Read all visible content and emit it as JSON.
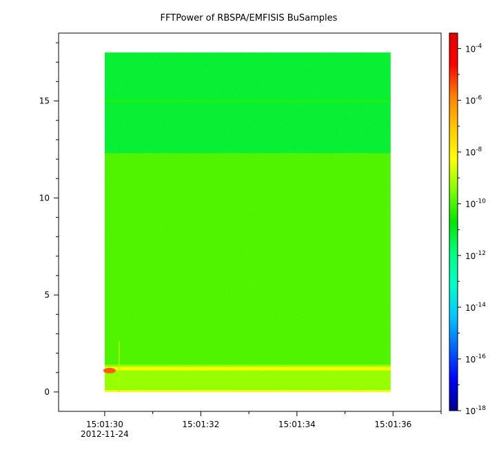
{
  "chart_data": {
    "type": "heatmap",
    "title": "FFTPower of RBSPA/EMFISIS  BuSamples",
    "xlabel": "",
    "ylabel": "",
    "x_ticks": [
      {
        "label": "15:01:30",
        "sub": "2012-11-24",
        "t": 30
      },
      {
        "label": "15:01:32",
        "sub": "",
        "t": 32
      },
      {
        "label": "15:01:34",
        "sub": "",
        "t": 34
      },
      {
        "label": "15:01:36",
        "sub": "",
        "t": 36
      }
    ],
    "xlim": [
      29.04,
      37.0
    ],
    "data_x_range": [
      30.0,
      35.95
    ],
    "y_ticks": [
      0,
      5,
      10,
      15
    ],
    "ylim": [
      -1.0,
      18.5
    ],
    "data_y_range": [
      0.0,
      17.5
    ],
    "colorbar": {
      "scale": "log",
      "range_exp": [
        -18,
        -3.4
      ],
      "ticks": [
        {
          "base": "10",
          "exp": "-4"
        },
        {
          "base": "10",
          "exp": "-6"
        },
        {
          "base": "10",
          "exp": "-8"
        },
        {
          "base": "10",
          "exp": "-10"
        },
        {
          "base": "10",
          "exp": "-12"
        },
        {
          "base": "10",
          "exp": "-14"
        },
        {
          "base": "10",
          "exp": "-16"
        },
        {
          "base": "10",
          "exp": "-18"
        }
      ],
      "colormap": [
        "#00008c",
        "#0000ff",
        "#0064ff",
        "#00c8ff",
        "#00ffc8",
        "#00ff80",
        "#00e600",
        "#80ff00",
        "#ffff00",
        "#ffc800",
        "#ff8000",
        "#ff0000",
        "#e60000"
      ]
    },
    "regions": [
      {
        "y": [
          12.3,
          17.5
        ],
        "log10_power": -11.2
      },
      {
        "y": [
          1.4,
          12.3
        ],
        "log10_power": -10.0
      },
      {
        "y": [
          0.1,
          1.4
        ],
        "log10_power": -9.3
      },
      {
        "y": [
          0.0,
          0.1
        ],
        "log10_power": -8.4
      }
    ],
    "features": [
      {
        "name": "horizontal line",
        "y": 15.0,
        "log10_power": -10.3
      },
      {
        "name": "band",
        "y": 1.2,
        "log10_power": -8.2
      },
      {
        "name": "peak",
        "x": 30.1,
        "y": 1.1,
        "log10_power": -5.5
      }
    ]
  }
}
